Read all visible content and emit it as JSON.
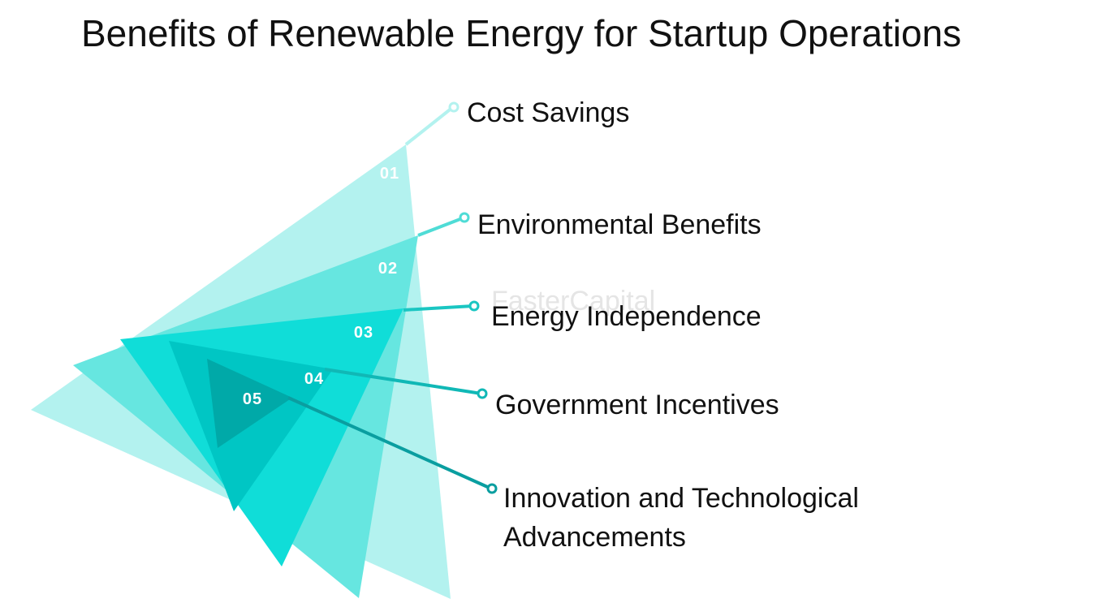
{
  "title": "Benefits of Renewable Energy for Startup Operations",
  "watermark": "FasterCapital",
  "items": [
    {
      "number": "01",
      "label": "Cost Savings"
    },
    {
      "number": "02",
      "label": "Environmental Benefits"
    },
    {
      "number": "03",
      "label": "Energy Independence"
    },
    {
      "number": "04",
      "label": "Government Incentives"
    },
    {
      "number": "05",
      "label": "Innovation and Technological Advancements"
    }
  ]
}
